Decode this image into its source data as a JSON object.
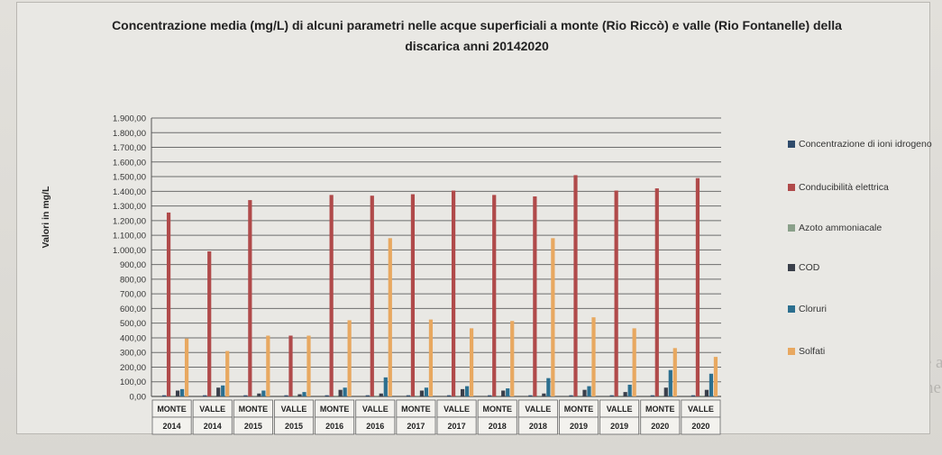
{
  "chart_data": {
    "type": "bar",
    "title": "Concentrazione media (mg/L) di alcuni parametri nelle acque superficiali a monte (Rio Riccò) e valle (Rio Fontanelle) della discarica anni 20142020",
    "ylabel": "Valori in mg/L",
    "xlabel": "",
    "ylim": [
      0,
      1900
    ],
    "yticks": [
      "0,00",
      "100,00",
      "200,00",
      "300,00",
      "400,00",
      "500,00",
      "600,00",
      "700,00",
      "800,00",
      "900,00",
      "1.000,00",
      "1.100,00",
      "1.200,00",
      "1.300,00",
      "1.400,00",
      "1.500,00",
      "1.600,00",
      "1.700,00",
      "1.800,00",
      "1.900,00"
    ],
    "categories": [
      {
        "site": "MONTE",
        "year": "2014"
      },
      {
        "site": "VALLE",
        "year": "2014"
      },
      {
        "site": "MONTE",
        "year": "2015"
      },
      {
        "site": "VALLE",
        "year": "2015"
      },
      {
        "site": "MONTE",
        "year": "2016"
      },
      {
        "site": "VALLE",
        "year": "2016"
      },
      {
        "site": "MONTE",
        "year": "2017"
      },
      {
        "site": "VALLE",
        "year": "2017"
      },
      {
        "site": "MONTE",
        "year": "2018"
      },
      {
        "site": "VALLE",
        "year": "2018"
      },
      {
        "site": "MONTE",
        "year": "2019"
      },
      {
        "site": "VALLE",
        "year": "2019"
      },
      {
        "site": "MONTE",
        "year": "2020"
      },
      {
        "site": "VALLE",
        "year": "2020"
      }
    ],
    "series": [
      {
        "name": "Concentrazione di ioni idrogeno",
        "color": "#2f4b6b",
        "values": [
          8,
          8,
          8,
          8,
          8,
          8,
          8,
          8,
          8,
          8,
          8,
          8,
          8,
          8
        ]
      },
      {
        "name": "Conducibilità elettrica",
        "color": "#b04a4a",
        "values": [
          1255,
          990,
          1340,
          415,
          1375,
          1370,
          1380,
          1405,
          1375,
          1365,
          1510,
          1405,
          1420,
          1490
        ]
      },
      {
        "name": "Azoto ammoniacale",
        "color": "#8aa08a",
        "values": [
          5,
          5,
          5,
          5,
          5,
          5,
          5,
          5,
          5,
          5,
          5,
          5,
          5,
          5
        ]
      },
      {
        "name": "COD",
        "color": "#3a3f4a",
        "values": [
          40,
          60,
          20,
          15,
          45,
          20,
          40,
          50,
          40,
          20,
          45,
          30,
          60,
          45
        ]
      },
      {
        "name": "Cloruri",
        "color": "#2c6f8f",
        "values": [
          50,
          75,
          40,
          30,
          60,
          130,
          60,
          70,
          55,
          125,
          70,
          80,
          180,
          155
        ]
      },
      {
        "name": "Solfati",
        "color": "#e8a860",
        "values": [
          395,
          310,
          415,
          415,
          520,
          1080,
          525,
          465,
          515,
          1080,
          540,
          465,
          330,
          270
        ]
      }
    ],
    "legend_position": "right",
    "grid": true
  }
}
